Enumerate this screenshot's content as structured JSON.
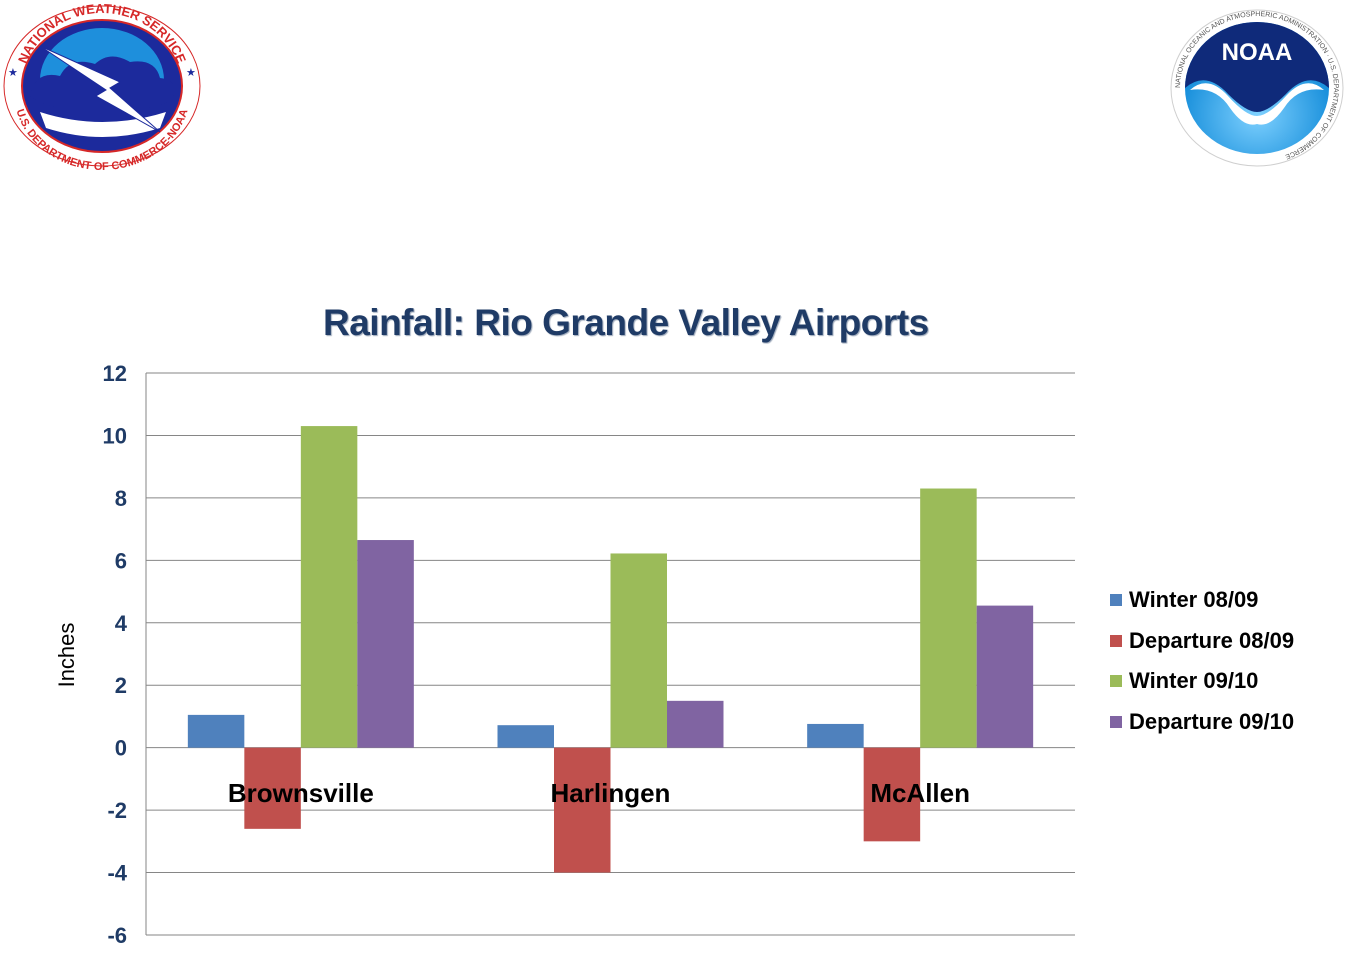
{
  "logos": {
    "nws_top_text": "NATIONAL WEATHER SERVICE",
    "nws_bottom_text": "U.S. DEPARTMENT OF COMMERCE-NOAA",
    "noaa_text": "NOAA",
    "noaa_ring_text": "NATIONAL OCEANIC AND ATMOSPHERIC ADMINISTRATION · U.S. DEPARTMENT OF COMMERCE"
  },
  "chart_data": {
    "type": "bar",
    "title": "Rainfall:  Rio Grande Valley Airports",
    "ylabel": "Inches",
    "xlabel": "",
    "ylim": [
      -6,
      12
    ],
    "yticks": [
      12,
      10,
      8,
      6,
      4,
      2,
      0,
      -2,
      -4,
      -6
    ],
    "grid": true,
    "legend_position": "right",
    "categories": [
      "Brownsville",
      "Harlingen",
      "McAllen"
    ],
    "series": [
      {
        "name": "Winter 08/09",
        "color": "#4f81bd",
        "values": [
          1.05,
          0.72,
          0.76
        ]
      },
      {
        "name": "Departure 08/09",
        "color": "#c0504d",
        "values": [
          -2.6,
          -4.0,
          -3.0
        ]
      },
      {
        "name": "Winter 09/10",
        "color": "#9bbb59",
        "values": [
          10.3,
          6.22,
          8.3
        ]
      },
      {
        "name": "Departure 09/10",
        "color": "#8064a2",
        "values": [
          6.65,
          1.5,
          4.55
        ]
      }
    ]
  }
}
